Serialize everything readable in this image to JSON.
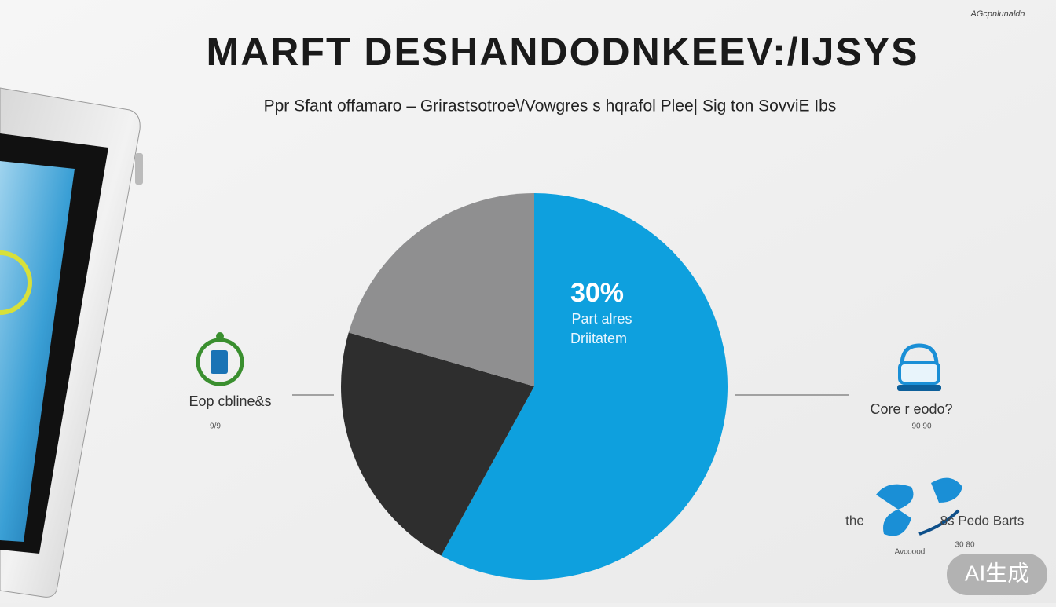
{
  "chart_data": {
    "type": "pie",
    "title": "MARFT DESHANDODNKEEV:/IJSYS",
    "subtitle": "Ppr Sfant offamaro – Grirastsotroe\\/Vowgres s hqrafol Plee| Sig ton SovviE Ibs",
    "values": [
      58,
      21.5,
      20.5
    ],
    "colors": [
      "#0ea0de",
      "#2e2e2e",
      "#8f8f90"
    ],
    "annotations": [
      "30%",
      "Part alres",
      "Driitatem",
      "Eop cbline&s",
      "9/9",
      "Core r eodo?",
      "90 90",
      "the",
      "8s Pedo Barts",
      "30 80",
      "Avcoood"
    ],
    "logo": "AGcpnlunaldn",
    "watermark": "AI生成"
  }
}
